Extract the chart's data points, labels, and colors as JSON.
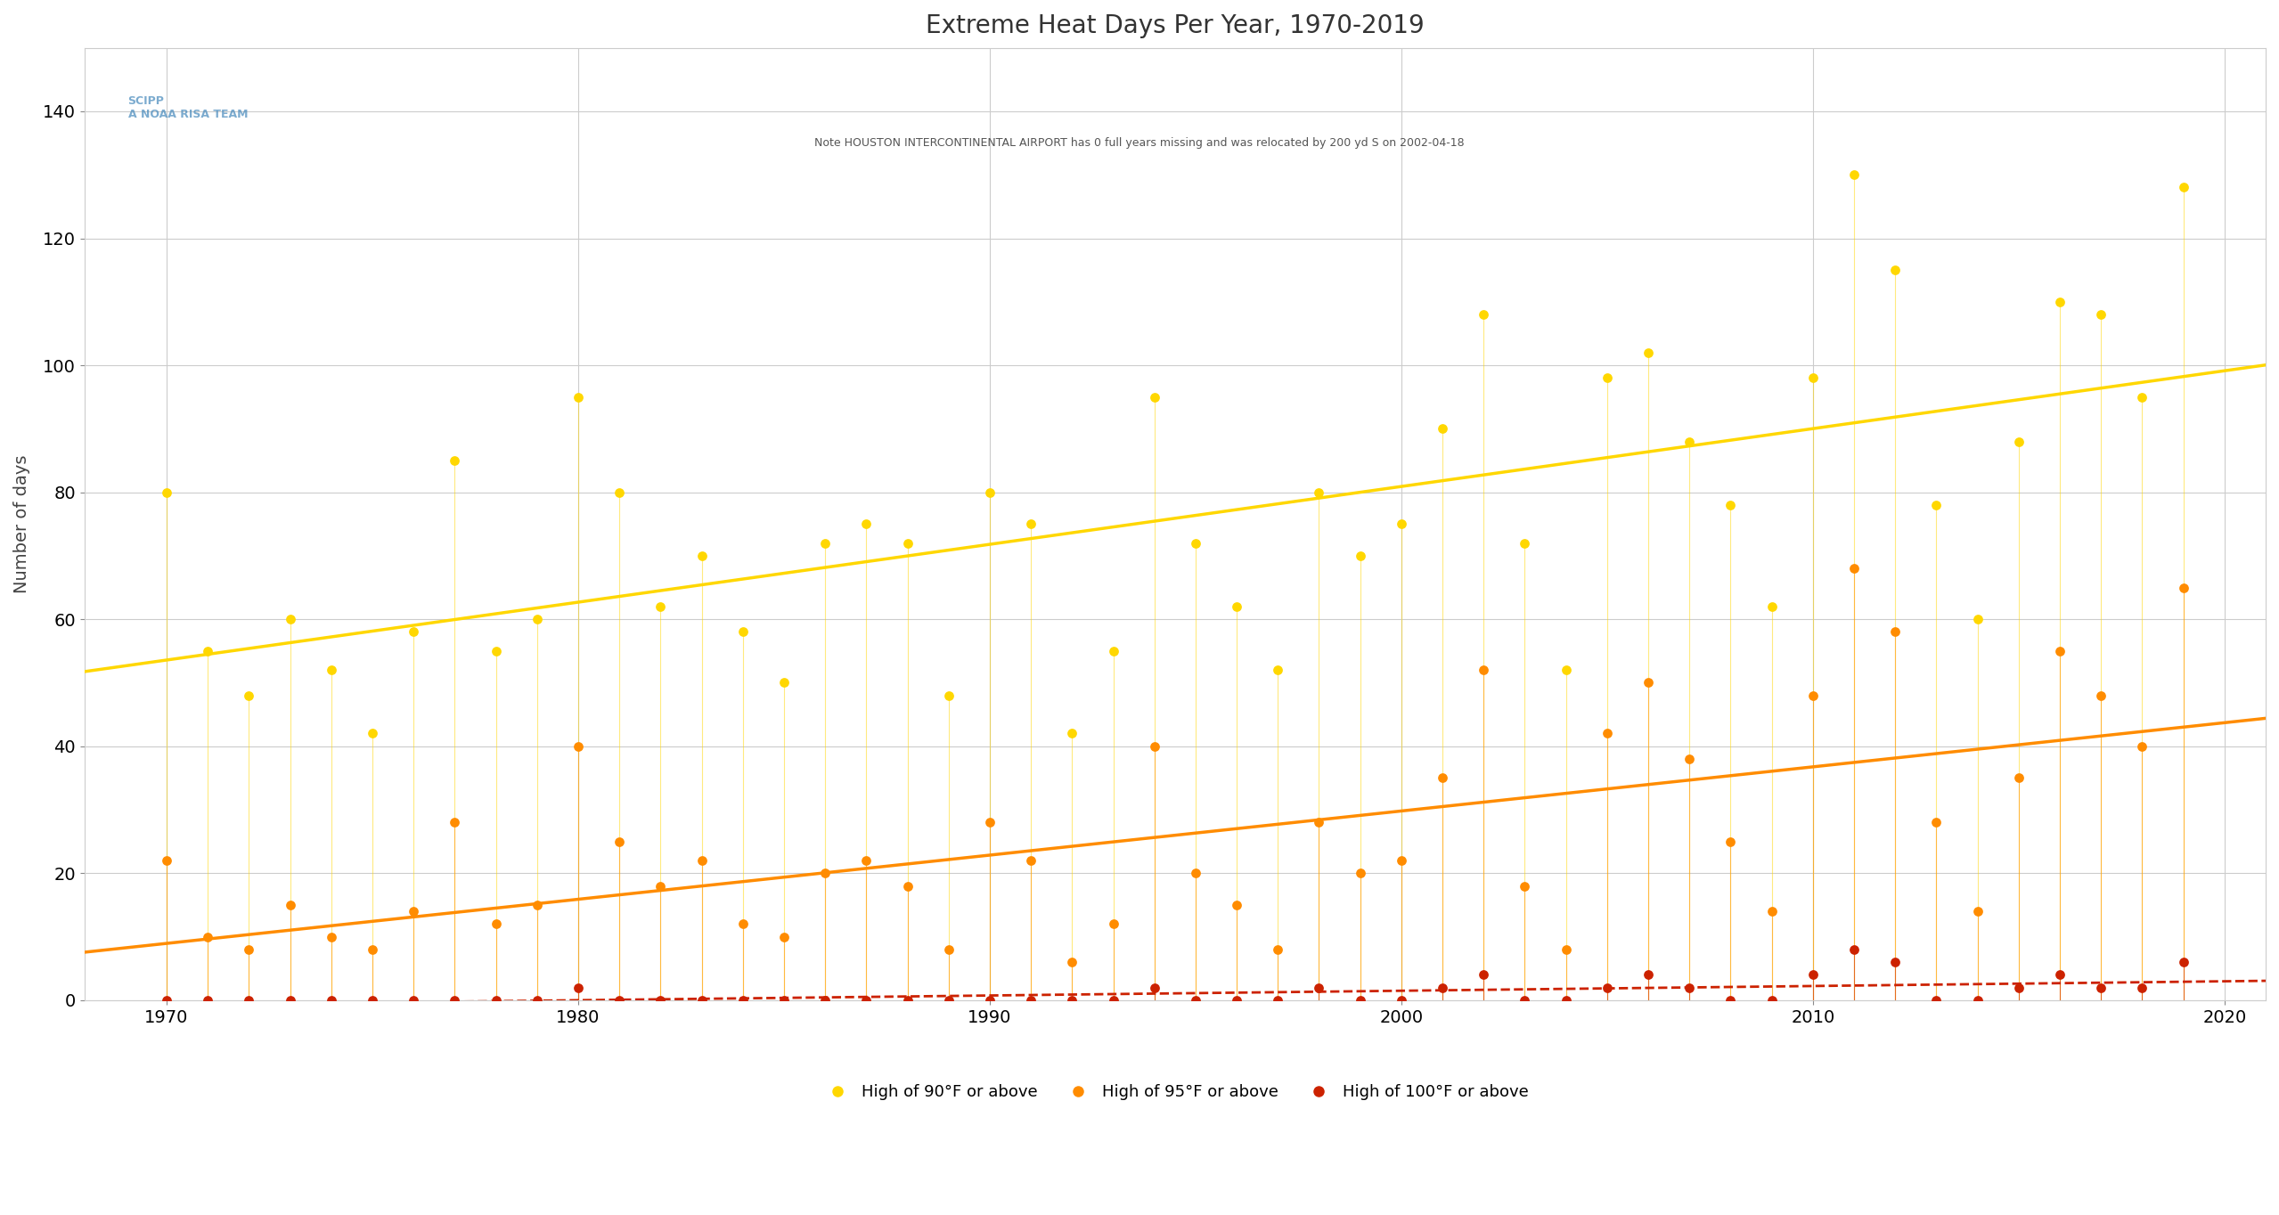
{
  "title": "Extreme Heat Days Per Year, 1970-2019",
  "subtitle": "Note HOUSTON INTERCONTINENTAL AIRPORT has 0 full years missing and was relocated by 200 yd S on 2002-04-18",
  "ylabel": "Number of days",
  "xlabel": "",
  "bg_color": "#ffffff",
  "plot_bg_color": "#ffffff",
  "years": [
    1970,
    1971,
    1972,
    1973,
    1974,
    1975,
    1976,
    1977,
    1978,
    1979,
    1980,
    1981,
    1982,
    1983,
    1984,
    1985,
    1986,
    1987,
    1988,
    1989,
    1990,
    1991,
    1992,
    1993,
    1994,
    1995,
    1996,
    1997,
    1998,
    1999,
    2000,
    2001,
    2002,
    2003,
    2004,
    2005,
    2006,
    2007,
    2008,
    2009,
    2010,
    2011,
    2012,
    2013,
    2014,
    2015,
    2016,
    2017,
    2018,
    2019
  ],
  "y90": [
    80,
    55,
    48,
    60,
    52,
    42,
    58,
    85,
    55,
    60,
    95,
    80,
    62,
    70,
    58,
    50,
    72,
    75,
    72,
    48,
    80,
    75,
    42,
    55,
    95,
    72,
    62,
    52,
    80,
    70,
    75,
    90,
    108,
    72,
    52,
    98,
    102,
    88,
    78,
    62,
    98,
    130,
    115,
    78,
    60,
    88,
    110,
    108,
    95,
    128
  ],
  "y95": [
    22,
    10,
    8,
    15,
    10,
    8,
    14,
    28,
    12,
    15,
    40,
    25,
    18,
    22,
    12,
    10,
    20,
    22,
    18,
    8,
    28,
    22,
    6,
    12,
    40,
    20,
    15,
    8,
    28,
    20,
    22,
    35,
    52,
    18,
    8,
    42,
    50,
    38,
    25,
    14,
    48,
    68,
    58,
    28,
    14,
    35,
    55,
    48,
    40,
    65
  ],
  "y100": [
    0,
    0,
    0,
    0,
    0,
    0,
    0,
    0,
    0,
    0,
    2,
    0,
    0,
    0,
    0,
    0,
    0,
    0,
    0,
    0,
    0,
    0,
    0,
    0,
    2,
    0,
    0,
    0,
    2,
    0,
    0,
    2,
    4,
    0,
    0,
    2,
    4,
    2,
    0,
    0,
    4,
    8,
    6,
    0,
    0,
    2,
    4,
    2,
    2,
    6
  ],
  "color90": "#FFD700",
  "color95": "#FF8C00",
  "color100": "#CC2200",
  "trend90_color": "#FFD700",
  "trend95_color": "#FF8C00",
  "trend100_color": "#CC2200",
  "ylim": [
    0,
    150
  ],
  "yticks": [
    0,
    20,
    40,
    60,
    80,
    100,
    120,
    140
  ],
  "xlim": [
    1968,
    2021
  ],
  "xticks": [
    1970,
    1980,
    1990,
    2000,
    2010,
    2020
  ]
}
